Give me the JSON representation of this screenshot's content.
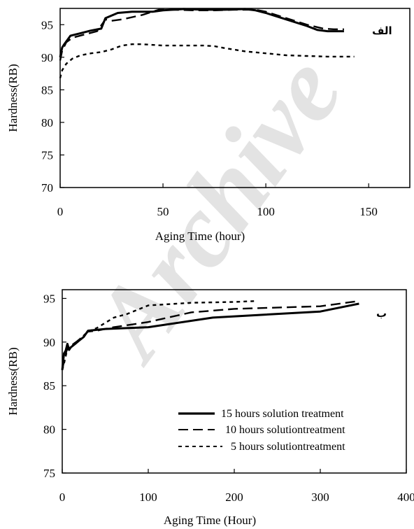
{
  "chart_data": [
    {
      "type": "line",
      "panel_label": "الف",
      "xlabel": "Aging Time (hour)",
      "ylabel": "Hardness(RB)",
      "xlim": [
        0,
        170
      ],
      "ylim": [
        70,
        97.5
      ],
      "xticks": [
        0,
        50,
        100,
        150
      ],
      "yticks": [
        70,
        75,
        80,
        85,
        90,
        95
      ],
      "legend": "none",
      "series": [
        {
          "style": "solid",
          "x": [
            0,
            1,
            2,
            5,
            10,
            15,
            20,
            22,
            28,
            35,
            45,
            50,
            60,
            70,
            80,
            90,
            95,
            100,
            110,
            120,
            125,
            130,
            138
          ],
          "y": [
            90,
            91.5,
            92,
            93.3,
            93.7,
            94.1,
            94.4,
            96,
            96.8,
            97,
            97,
            97.2,
            97.4,
            97.3,
            97.3,
            97.4,
            97.2,
            96.8,
            95.8,
            94.8,
            94.2,
            94,
            94
          ],
          "color": "#000000"
        },
        {
          "style": "dashed",
          "x": [
            0,
            1,
            3,
            6,
            12,
            18,
            22,
            25,
            30,
            40,
            48,
            55,
            65,
            75,
            85,
            95,
            100,
            110,
            120,
            128,
            133,
            138
          ],
          "y": [
            89.5,
            91,
            92.3,
            93,
            93.5,
            94,
            95.8,
            95.6,
            95.8,
            96.5,
            97.3,
            97.3,
            97.2,
            97.2,
            97.3,
            97.3,
            97,
            96,
            95,
            94.4,
            94.3,
            94.3
          ],
          "color": "#000000"
        },
        {
          "style": "dotted",
          "x": [
            0,
            1,
            3,
            6,
            10,
            15,
            20,
            25,
            30,
            35,
            40,
            50,
            60,
            70,
            75,
            80,
            90,
            100,
            110,
            120,
            130,
            143
          ],
          "y": [
            86.8,
            88,
            89,
            89.8,
            90.3,
            90.6,
            90.8,
            91.2,
            91.8,
            92,
            92,
            91.8,
            91.8,
            91.8,
            91.7,
            91.4,
            90.9,
            90.6,
            90.3,
            90.2,
            90.1,
            90.1
          ],
          "color": "#000000"
        }
      ]
    },
    {
      "type": "line",
      "panel_label": "ب",
      "xlabel": "Aging Time (Hour)",
      "ylabel": "Hardness(RB)",
      "xlim": [
        0,
        400
      ],
      "ylim": [
        75,
        96
      ],
      "xticks": [
        0,
        100,
        200,
        300,
        400
      ],
      "yticks": [
        75,
        80,
        85,
        90,
        95
      ],
      "legend": "lower-right",
      "series": [
        {
          "name": "15 hours solution  treatment",
          "style": "solid",
          "x": [
            0,
            2,
            4,
            6,
            8,
            10,
            15,
            20,
            25,
            30,
            40,
            50,
            100,
            175,
            300,
            345
          ],
          "y": [
            86.8,
            88.7,
            89,
            89.8,
            89.1,
            89.4,
            89.8,
            90.2,
            90.6,
            91.3,
            91.4,
            91.5,
            91.7,
            92.8,
            93.5,
            94.4
          ],
          "color": "#000000"
        },
        {
          "name": "10 hours solutiontreatment",
          "style": "dashed",
          "x": [
            0,
            2,
            5,
            8,
            12,
            20,
            30,
            40,
            60,
            100,
            150,
            200,
            300,
            345
          ],
          "y": [
            86.8,
            87.8,
            89,
            89.5,
            89.7,
            90.3,
            91.2,
            91.3,
            91.7,
            92.3,
            93.4,
            93.8,
            94.1,
            94.7
          ],
          "color": "#000000"
        },
        {
          "name": "5 hours solutiontreatment",
          "style": "dotted",
          "x": [
            0,
            2,
            5,
            8,
            12,
            20,
            30,
            40,
            60,
            75,
            85,
            100,
            150,
            200,
            225
          ],
          "y": [
            86.8,
            87.5,
            88.8,
            89.4,
            89.7,
            90.3,
            91.2,
            91.6,
            92.8,
            93.2,
            93.6,
            94.2,
            94.5,
            94.6,
            94.7
          ],
          "color": "#000000"
        }
      ]
    }
  ]
}
